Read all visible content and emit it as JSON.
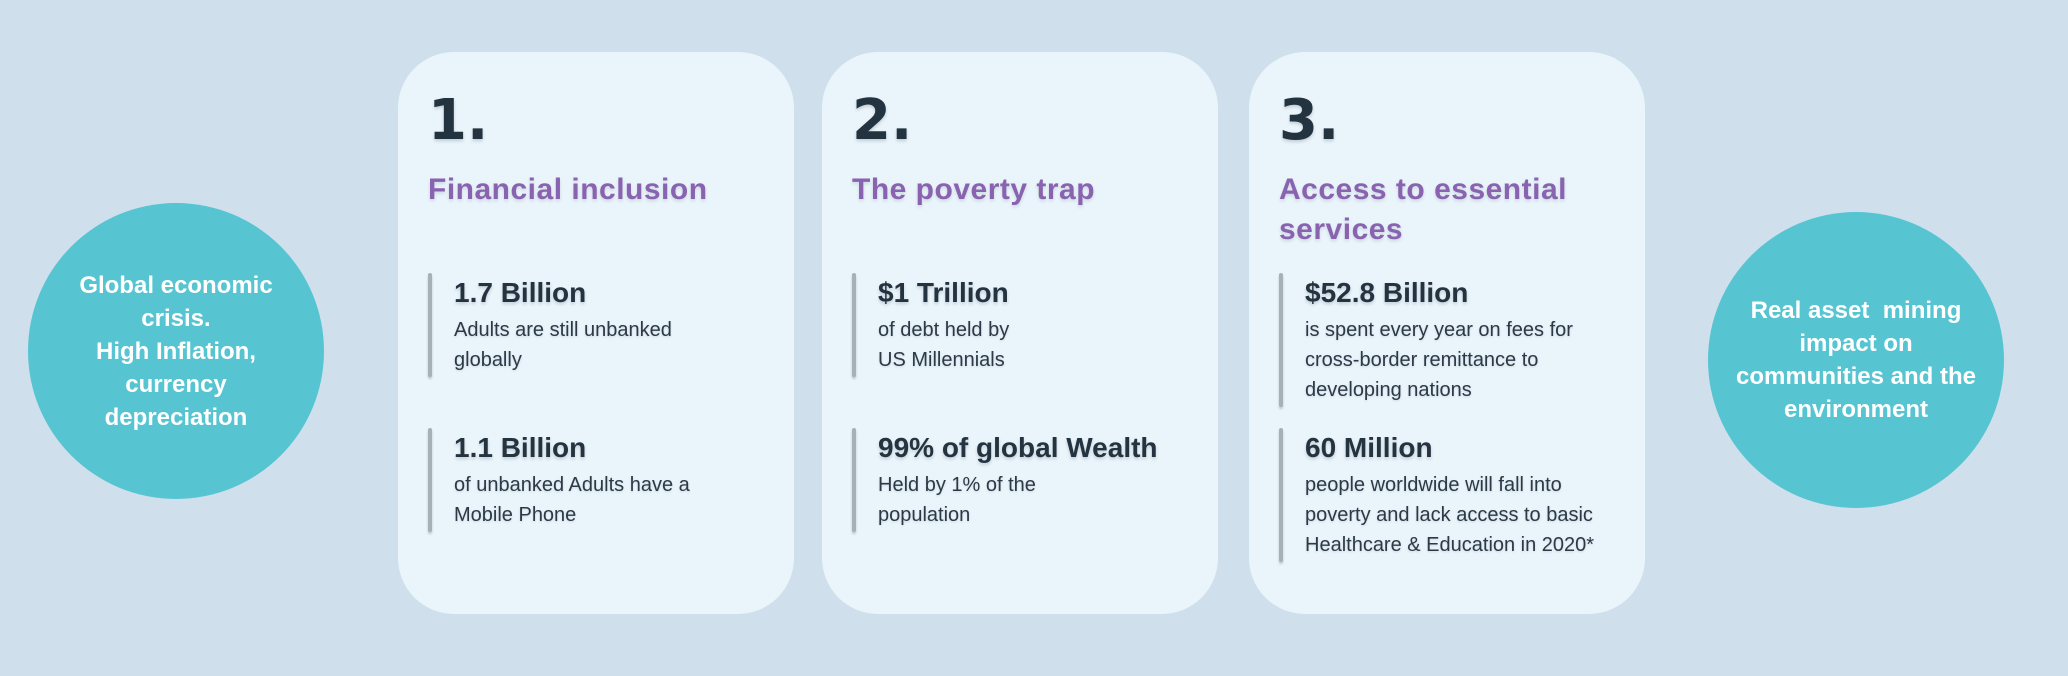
{
  "colors": {
    "page_background": "#cfe0ec",
    "card_background": "#eaf4fb",
    "circle_teal": "#57c4d2",
    "title_purple": "#8a63b0",
    "text_dark_navy": "#243340",
    "divider_gray": "#a7b0b9",
    "circle_text": "#ffffff"
  },
  "left_circle": {
    "text": "Global economic\ncrisis.\nHigh Inflation,\ncurrency\ndepreciation"
  },
  "right_circle": {
    "text": "Real asset  mining\nimpact on\ncommunities and the\nenvironment"
  },
  "cards": [
    {
      "number": "1.",
      "title": "Financial inclusion",
      "stats": [
        {
          "value": "1.7 Billion",
          "caption": "Adults are still unbanked\nglobally"
        },
        {
          "value": "1.1 Billion",
          "caption": "of unbanked Adults have a\nMobile Phone"
        }
      ]
    },
    {
      "number": "2.",
      "title": "The poverty trap",
      "stats": [
        {
          "value": "$1 Trillion",
          "caption": "of debt held by\nUS Millennials"
        },
        {
          "value": "99% of global Wealth",
          "caption": "Held by 1% of the\npopulation"
        }
      ]
    },
    {
      "number": "3.",
      "title": "Access to essential\nservices",
      "stats": [
        {
          "value": "$52.8 Billion",
          "caption": "is spent every year on fees for\ncross-border remittance to\ndeveloping nations"
        },
        {
          "value": "60 Million",
          "caption": "people worldwide will fall into\npoverty and lack access to basic\nHealthcare & Education in 2020*"
        }
      ]
    }
  ]
}
